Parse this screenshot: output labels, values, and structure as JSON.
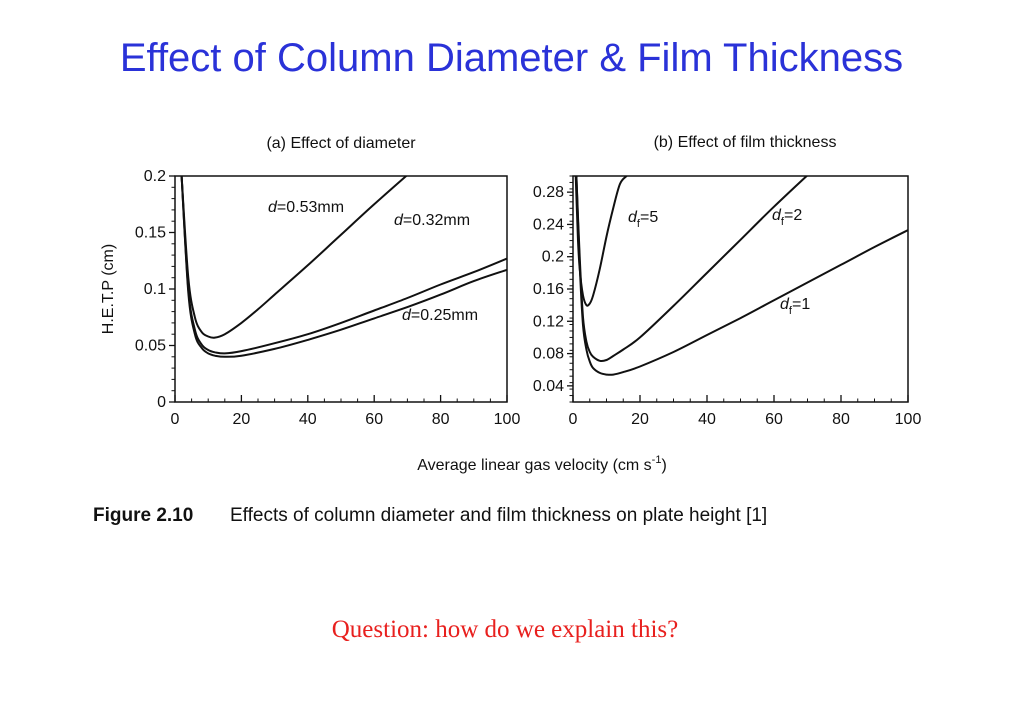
{
  "page": {
    "title": "Effect of Column Diameter & Film Thickness",
    "question": "Question: how do we explain this?",
    "figure_number": "Figure 2.10",
    "figure_caption": "Effects of column diameter and film thickness on plate height [1]"
  },
  "chart_data": [
    {
      "type": "line",
      "title": "(a) Effect of diameter",
      "xlabel": "Average linear gas velocity (cm s-1)",
      "xlabel_main": "Average linear gas velocity (cm s",
      "xlabel_sup": "-1",
      "xlabel_tail": ")",
      "ylabel": "H.E.T.P (cm)",
      "xlim": [
        0,
        100
      ],
      "ylim": [
        0,
        0.2
      ],
      "xticks": [
        0,
        20,
        40,
        60,
        80,
        100
      ],
      "yticks": [
        0,
        0.05,
        0.1,
        0.15,
        0.2
      ],
      "ytick_labels": [
        "0",
        "0.05",
        "0.1",
        "0.15",
        "0.2"
      ],
      "grid": false,
      "series": [
        {
          "name": "d=0.53mm",
          "label_var": "d",
          "label_val": "=0.53mm",
          "x": [
            2,
            4,
            6,
            8,
            10,
            12,
            15,
            20,
            25,
            30,
            40,
            50,
            60,
            70
          ],
          "y": [
            0.2,
            0.11,
            0.075,
            0.062,
            0.058,
            0.057,
            0.06,
            0.07,
            0.082,
            0.095,
            0.121,
            0.148,
            0.175,
            0.201
          ]
        },
        {
          "name": "d=0.32mm",
          "label_var": "d",
          "label_val": "=0.32mm",
          "x": [
            2,
            4,
            6,
            8,
            10,
            12,
            15,
            20,
            30,
            40,
            50,
            60,
            70,
            80,
            90,
            100
          ],
          "y": [
            0.2,
            0.1,
            0.064,
            0.051,
            0.046,
            0.044,
            0.043,
            0.045,
            0.052,
            0.06,
            0.07,
            0.081,
            0.092,
            0.104,
            0.115,
            0.127
          ]
        },
        {
          "name": "d=0.25mm",
          "label_var": "d",
          "label_val": "=0.25mm",
          "x": [
            2,
            4,
            6,
            8,
            10,
            12,
            15,
            20,
            30,
            40,
            50,
            60,
            70,
            80,
            90,
            100
          ],
          "y": [
            0.2,
            0.097,
            0.06,
            0.048,
            0.043,
            0.041,
            0.04,
            0.041,
            0.047,
            0.055,
            0.064,
            0.074,
            0.084,
            0.095,
            0.107,
            0.117
          ]
        }
      ]
    },
    {
      "type": "line",
      "title": "(b) Effect of film thickness",
      "xlim": [
        0,
        100
      ],
      "ylim": [
        0.02,
        0.3
      ],
      "xticks": [
        0,
        20,
        40,
        60,
        80,
        100
      ],
      "yticks": [
        0.04,
        0.08,
        0.12,
        0.16,
        0.2,
        0.24,
        0.28
      ],
      "ytick_labels": [
        "0.04",
        "0.08",
        "0.12",
        "0.16",
        "0.2",
        "0.24",
        "0.28"
      ],
      "grid": false,
      "series": [
        {
          "name": "df=5",
          "label_var": "d",
          "label_sub": "f",
          "label_val": "=5",
          "x": [
            0.8,
            1.5,
            2,
            3,
            4,
            5,
            6,
            8,
            10,
            12,
            14,
            16
          ],
          "y": [
            0.3,
            0.22,
            0.185,
            0.152,
            0.14,
            0.142,
            0.152,
            0.185,
            0.225,
            0.26,
            0.29,
            0.3
          ]
        },
        {
          "name": "df=2",
          "label_var": "d",
          "label_sub": "f",
          "label_val": "=2",
          "x": [
            1,
            2,
            3,
            4,
            5,
            6,
            8,
            10,
            12,
            15,
            20,
            30,
            40,
            50,
            60,
            70
          ],
          "y": [
            0.3,
            0.2,
            0.125,
            0.095,
            0.082,
            0.076,
            0.071,
            0.072,
            0.077,
            0.085,
            0.1,
            0.139,
            0.18,
            0.221,
            0.262,
            0.301
          ]
        },
        {
          "name": "df=1",
          "label_var": "d",
          "label_sub": "f",
          "label_val": "=1",
          "x": [
            1,
            2,
            3,
            4,
            5,
            6,
            8,
            10,
            12,
            15,
            20,
            30,
            40,
            50,
            60,
            70,
            80,
            90,
            100
          ],
          "y": [
            0.3,
            0.19,
            0.115,
            0.085,
            0.07,
            0.062,
            0.056,
            0.054,
            0.054,
            0.057,
            0.064,
            0.082,
            0.103,
            0.124,
            0.146,
            0.168,
            0.19,
            0.212,
            0.233
          ]
        }
      ]
    }
  ]
}
